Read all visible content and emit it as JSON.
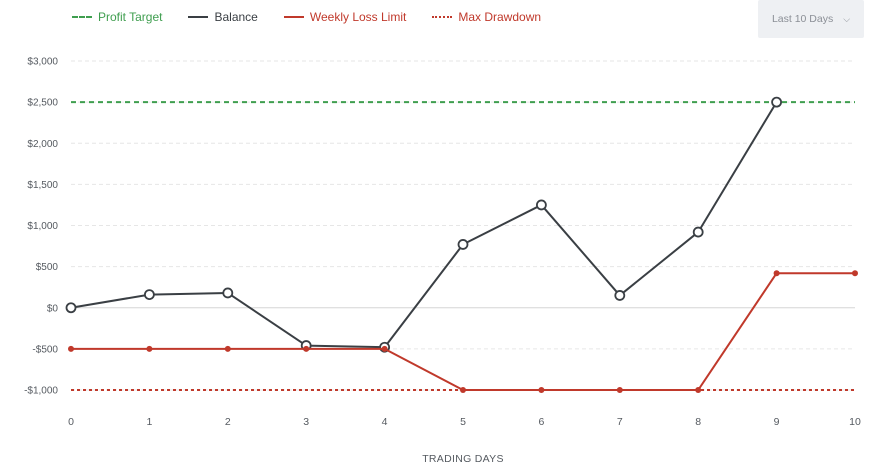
{
  "range_select": {
    "value": "Last 10 Days"
  },
  "icons": {
    "range_chevron": "chevron-down-icon"
  },
  "legend": [
    {
      "label": "Profit Target",
      "color": "#3f9e4f",
      "style": "dashed"
    },
    {
      "label": "Balance",
      "color": "#3a3f44",
      "style": "solid"
    },
    {
      "label": "Weekly Loss Limit",
      "color": "#c0392b",
      "style": "solid"
    },
    {
      "label": "Max Drawdown",
      "color": "#c0392b",
      "style": "dotted"
    }
  ],
  "chart_data": {
    "type": "line",
    "xlabel": "TRADING DAYS",
    "ylabel": "",
    "xlim": [
      0,
      10
    ],
    "ylim": [
      -1000,
      3000
    ],
    "x_ticks": [
      "0",
      "1",
      "2",
      "3",
      "4",
      "5",
      "6",
      "7",
      "8",
      "9",
      "10"
    ],
    "y_ticks": [
      {
        "value": 3000,
        "label": "$3,000"
      },
      {
        "value": 2500,
        "label": "$2,500"
      },
      {
        "value": 2000,
        "label": "$2,000"
      },
      {
        "value": 1500,
        "label": "$1,500"
      },
      {
        "value": 1000,
        "label": "$1,000"
      },
      {
        "value": 500,
        "label": "$500"
      },
      {
        "value": 0,
        "label": "$0"
      },
      {
        "value": -500,
        "label": "-$500"
      },
      {
        "value": -1000,
        "label": "-$1,000"
      }
    ],
    "grid": true,
    "legend_position": "top-left",
    "series": [
      {
        "name": "Profit Target",
        "kind": "reference",
        "x": [
          0,
          10
        ],
        "y": [
          2500,
          2500
        ]
      },
      {
        "name": "Balance",
        "kind": "line-open-markers",
        "x": [
          0,
          1,
          2,
          3,
          4,
          5,
          6,
          7,
          8,
          9
        ],
        "y": [
          0,
          160,
          180,
          -460,
          -480,
          770,
          1250,
          150,
          920,
          2500
        ]
      },
      {
        "name": "Weekly Loss Limit",
        "kind": "line-dot-markers",
        "x": [
          0,
          1,
          2,
          3,
          4,
          5,
          6,
          7,
          8,
          9,
          10
        ],
        "y": [
          -500,
          -500,
          -500,
          -500,
          -500,
          -1000,
          -1000,
          -1000,
          -1000,
          420,
          420
        ]
      },
      {
        "name": "Max Drawdown",
        "kind": "reference",
        "x": [
          0,
          10
        ],
        "y": [
          -1000,
          -1000
        ]
      }
    ]
  }
}
